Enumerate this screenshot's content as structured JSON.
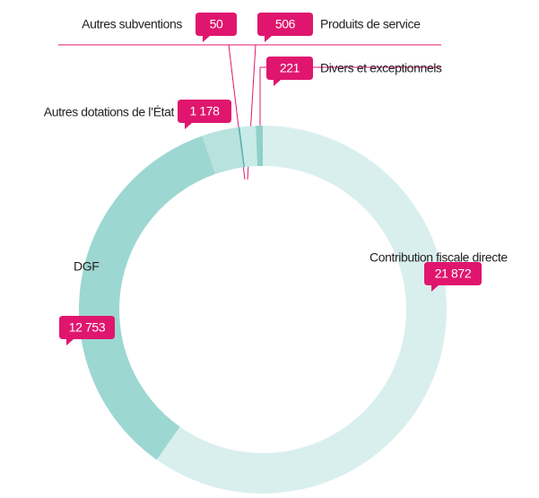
{
  "chart_data": {
    "type": "pie",
    "categories": [
      "Contribution fiscale directe",
      "DGF",
      "Autres dotations de l’État",
      "Autres subventions",
      "Produits de service",
      "Divers et exceptionnels"
    ],
    "values": [
      21872,
      12753,
      1178,
      50,
      506,
      221
    ],
    "value_labels": [
      "21 872",
      "12 753",
      "1 178",
      "50",
      "506",
      "221"
    ],
    "colors": [
      "#d9efee",
      "#9dd7d1",
      "#b7e2de",
      "#4fb8ad",
      "#c9ebe8",
      "#8fd0c9"
    ],
    "donut": true
  }
}
